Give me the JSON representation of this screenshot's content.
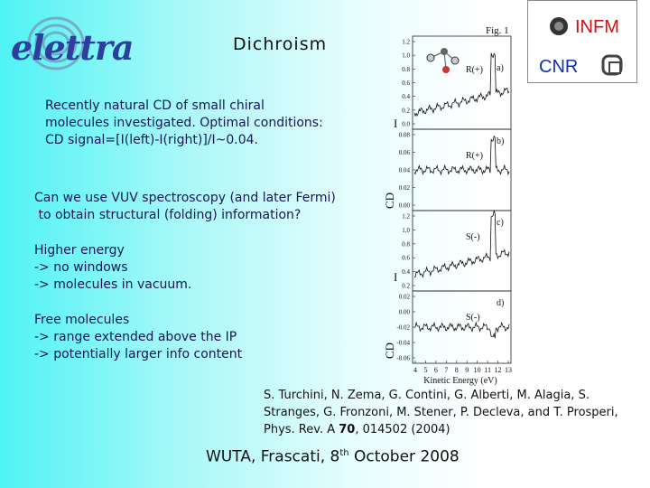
{
  "header": {
    "logo": "elettra",
    "title": "Dichroism",
    "badge_top": "INFM",
    "badge_bottom": "CNR"
  },
  "body": {
    "paragraphs": [
      {
        "lines": [
          "Recently natural CD of small chiral",
          "molecules investigated. Optimal conditions:",
          "CD signal=[I(left)-I(right)]/I~0.04."
        ]
      },
      {
        "lines": [
          "Can we use VUV spectroscopy (and later Fermi)",
          " to obtain structural (folding) information?"
        ]
      },
      {
        "lines": [
          "Higher energy",
          "-> no windows",
          "-> molecules in vacuum."
        ]
      },
      {
        "lines": [
          "Free molecules",
          "-> range extended above the IP",
          "-> potentially larger info content"
        ]
      }
    ]
  },
  "figure": {
    "caption": "Fig. 1",
    "ylabel": "I",
    "ylabel_cd": "CD",
    "panels": [
      {
        "tag": "a)",
        "label": "R(+)",
        "yticks": [
          "1.2",
          "1.0",
          "0.8",
          "0.6",
          "0.4",
          "0.2",
          "0.0"
        ]
      },
      {
        "tag": "b)",
        "label": "R(+)",
        "yticks": [
          "0.08",
          "0.06",
          "0.04",
          "0.02",
          "0.00"
        ]
      },
      {
        "tag": "c)",
        "label": "S(-)",
        "yticks": [
          "1.2",
          "1.0",
          "0.8",
          "0.6",
          "0.4",
          "0.2"
        ]
      },
      {
        "tag": "d)",
        "label": "S(-)",
        "yticks": [
          "0.02",
          "0.00",
          "-0.02",
          "-0.04",
          "-0.06"
        ]
      }
    ],
    "xticks": [
      4,
      5,
      6,
      7,
      8,
      9,
      10,
      11,
      12,
      13
    ],
    "xlabel": "Kinetic Energy (eV)"
  },
  "reference": {
    "line1": "S. Turchini, N. Zema, G. Contini, G. Alberti, M. Alagia, S.",
    "line2": "Stranges, G. Fronzoni, M. Stener, P. Decleva, and T. Prosperi,",
    "line3_prefix": "Phys. Rev. A ",
    "volume": "70",
    "line3_suffix": ", 014502 (2004)"
  },
  "footer": {
    "text": "WUTA, Frascati, 8",
    "sup": "th",
    "rest": " October 2008"
  }
}
